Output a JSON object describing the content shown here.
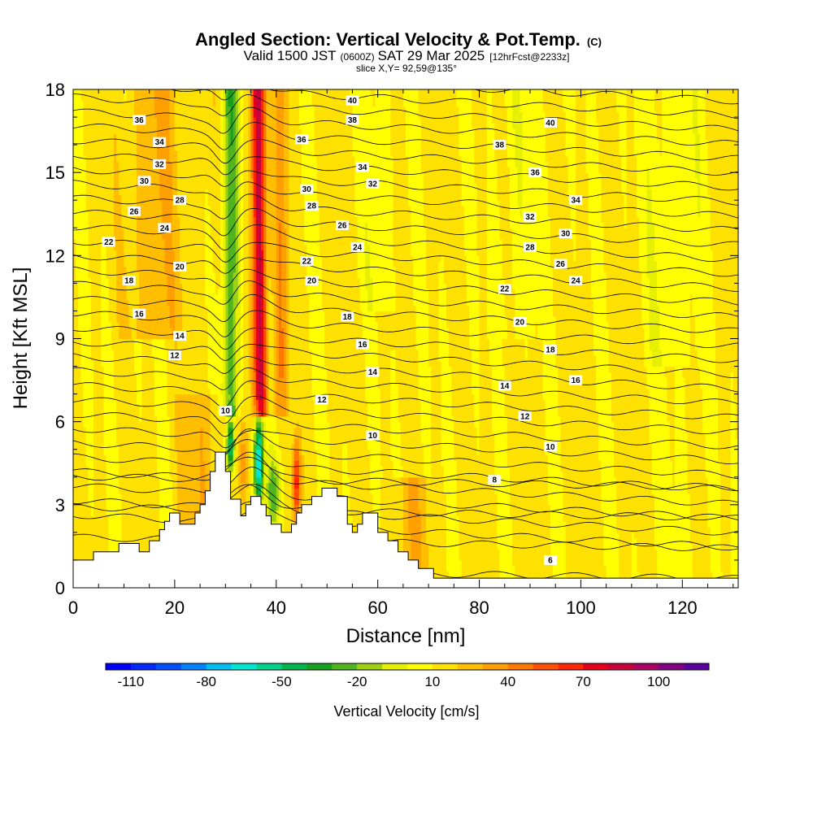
{
  "chart_data": {
    "type": "heatmap",
    "title": "Angled Section: Vertical Velocity & Pot.Temp.",
    "title_mark": "(C)",
    "subtitle_main": "Valid 1500 JST",
    "subtitle_utc": "(0600Z)",
    "subtitle_date": "SAT 29 Mar 2025",
    "subtitle_fcst": "[12hrFcst@2233z]",
    "slice_info": "slice X,Y= 92,59@135°",
    "xlabel": "Distance [nm]",
    "ylabel": "Height [Kft MSL]",
    "xlim": [
      0,
      131
    ],
    "ylim": [
      0,
      18
    ],
    "x_ticks": [
      "0",
      "20",
      "40",
      "60",
      "80",
      "100",
      "120"
    ],
    "y_ticks": [
      "0",
      "3",
      "6",
      "9",
      "12",
      "15",
      "18"
    ],
    "colorbar": {
      "title": "Vertical Velocity [cm/s]",
      "labels": [
        "-110",
        "-80",
        "-50",
        "-20",
        "10",
        "40",
        "70",
        "100"
      ],
      "bins_start": -120,
      "bin_width": 10,
      "colors": [
        "#0000ff",
        "#0028ff",
        "#0050ff",
        "#0082ff",
        "#00bef0",
        "#00e6d2",
        "#00d28c",
        "#00b450",
        "#14a01e",
        "#50b41e",
        "#a0d214",
        "#e6f000",
        "#ffff00",
        "#ffe100",
        "#ffbe00",
        "#ffa000",
        "#ff7800",
        "#ff5000",
        "#ff2800",
        "#e6001e",
        "#c8003c",
        "#aa0064",
        "#820082",
        "#5a00a0"
      ]
    },
    "terrain": [
      [
        0,
        1
      ],
      [
        4,
        1
      ],
      [
        4,
        1.3
      ],
      [
        9,
        1.3
      ],
      [
        9,
        1.6
      ],
      [
        13,
        1.6
      ],
      [
        13,
        1.3
      ],
      [
        15,
        1.3
      ],
      [
        15,
        1.7
      ],
      [
        17,
        1.7
      ],
      [
        17,
        2.1
      ],
      [
        18,
        2.1
      ],
      [
        18,
        2.4
      ],
      [
        19,
        2.4
      ],
      [
        19,
        2.7
      ],
      [
        21,
        2.7
      ],
      [
        21,
        2.3
      ],
      [
        24,
        2.3
      ],
      [
        24,
        2.7
      ],
      [
        25,
        2.7
      ],
      [
        25,
        3.0
      ],
      [
        26,
        3.0
      ],
      [
        26,
        3.5
      ],
      [
        27,
        3.5
      ],
      [
        27,
        4.2
      ],
      [
        28,
        4.2
      ],
      [
        28,
        4.9
      ],
      [
        30,
        4.9
      ],
      [
        30,
        4.2
      ],
      [
        31,
        4.2
      ],
      [
        31,
        3.2
      ],
      [
        33,
        3.2
      ],
      [
        33,
        2.6
      ],
      [
        34,
        2.6
      ],
      [
        34,
        3.0
      ],
      [
        35,
        3.0
      ],
      [
        35,
        3.3
      ],
      [
        37,
        3.3
      ],
      [
        37,
        3.0
      ],
      [
        38,
        3.0
      ],
      [
        38,
        2.6
      ],
      [
        39,
        2.6
      ],
      [
        39,
        2.3
      ],
      [
        41,
        2.3
      ],
      [
        41,
        2.0
      ],
      [
        43,
        2.0
      ],
      [
        43,
        2.3
      ],
      [
        44,
        2.3
      ],
      [
        44,
        2.7
      ],
      [
        45,
        2.7
      ],
      [
        45,
        3.0
      ],
      [
        47,
        3.0
      ],
      [
        47,
        3.3
      ],
      [
        49,
        3.3
      ],
      [
        49,
        3.6
      ],
      [
        52,
        3.6
      ],
      [
        52,
        3.3
      ],
      [
        54,
        3.3
      ],
      [
        54,
        2.3
      ],
      [
        55,
        2.3
      ],
      [
        55,
        2.0
      ],
      [
        56,
        2.0
      ],
      [
        56,
        2.3
      ],
      [
        57,
        2.3
      ],
      [
        57,
        2.7
      ],
      [
        60,
        2.7
      ],
      [
        60,
        2.0
      ],
      [
        62,
        2.0
      ],
      [
        62,
        1.7
      ],
      [
        64,
        1.7
      ],
      [
        64,
        1.3
      ],
      [
        66,
        1.3
      ],
      [
        66,
        1.0
      ],
      [
        68,
        1.0
      ],
      [
        68,
        0.7
      ],
      [
        71,
        0.7
      ],
      [
        71,
        0.35
      ],
      [
        131,
        0.35
      ]
    ],
    "isentropes": {
      "min": 6,
      "max": 41,
      "step": 1,
      "labels": [
        {
          "text": "36",
          "x": 13,
          "y": 16.9
        },
        {
          "text": "34",
          "x": 17,
          "y": 16.1
        },
        {
          "text": "32",
          "x": 17,
          "y": 15.3
        },
        {
          "text": "30",
          "x": 14,
          "y": 14.7
        },
        {
          "text": "28",
          "x": 21,
          "y": 14.0
        },
        {
          "text": "26",
          "x": 12,
          "y": 13.6
        },
        {
          "text": "24",
          "x": 18,
          "y": 13.0
        },
        {
          "text": "22",
          "x": 7,
          "y": 12.5
        },
        {
          "text": "20",
          "x": 21,
          "y": 11.6
        },
        {
          "text": "18",
          "x": 11,
          "y": 11.1
        },
        {
          "text": "16",
          "x": 13,
          "y": 9.9
        },
        {
          "text": "14",
          "x": 21,
          "y": 9.1
        },
        {
          "text": "12",
          "x": 20,
          "y": 8.4
        },
        {
          "text": "10",
          "x": 30,
          "y": 6.4
        },
        {
          "text": "40",
          "x": 55,
          "y": 17.6
        },
        {
          "text": "38",
          "x": 55,
          "y": 16.9
        },
        {
          "text": "36",
          "x": 45,
          "y": 16.2
        },
        {
          "text": "34",
          "x": 57,
          "y": 15.2
        },
        {
          "text": "32",
          "x": 59,
          "y": 14.6
        },
        {
          "text": "30",
          "x": 46,
          "y": 14.4
        },
        {
          "text": "28",
          "x": 47,
          "y": 13.8
        },
        {
          "text": "26",
          "x": 53,
          "y": 13.1
        },
        {
          "text": "24",
          "x": 56,
          "y": 12.3
        },
        {
          "text": "22",
          "x": 46,
          "y": 11.8
        },
        {
          "text": "20",
          "x": 47,
          "y": 11.1
        },
        {
          "text": "18",
          "x": 54,
          "y": 9.8
        },
        {
          "text": "16",
          "x": 57,
          "y": 8.8
        },
        {
          "text": "14",
          "x": 59,
          "y": 7.8
        },
        {
          "text": "12",
          "x": 49,
          "y": 6.8
        },
        {
          "text": "10",
          "x": 59,
          "y": 5.5
        },
        {
          "text": "40",
          "x": 94,
          "y": 16.8
        },
        {
          "text": "38",
          "x": 84,
          "y": 16.0
        },
        {
          "text": "36",
          "x": 91,
          "y": 15.0
        },
        {
          "text": "34",
          "x": 99,
          "y": 14.0
        },
        {
          "text": "32",
          "x": 90,
          "y": 13.4
        },
        {
          "text": "30",
          "x": 97,
          "y": 12.8
        },
        {
          "text": "28",
          "x": 90,
          "y": 12.3
        },
        {
          "text": "26",
          "x": 96,
          "y": 11.7
        },
        {
          "text": "24",
          "x": 99,
          "y": 11.1
        },
        {
          "text": "22",
          "x": 85,
          "y": 10.8
        },
        {
          "text": "20",
          "x": 88,
          "y": 9.6
        },
        {
          "text": "18",
          "x": 94,
          "y": 8.6
        },
        {
          "text": "16",
          "x": 99,
          "y": 7.5
        },
        {
          "text": "14",
          "x": 85,
          "y": 7.3
        },
        {
          "text": "12",
          "x": 89,
          "y": 6.2
        },
        {
          "text": "10",
          "x": 94,
          "y": 5.1
        },
        {
          "text": "8",
          "x": 83,
          "y": 3.9
        },
        {
          "text": "6",
          "x": 94,
          "y": 1.0
        }
      ]
    },
    "notes_series": [
      {
        "feature": "updraft",
        "center_x": 37,
        "height_range": [
          6.5,
          18
        ],
        "peak_value": 80
      },
      {
        "feature": "downdraft",
        "center_x": 31,
        "height_range": [
          6.5,
          18
        ],
        "peak_value": -40
      },
      {
        "feature": "lee_downdraft",
        "center_x": 36.5,
        "height_range": [
          3,
          6.5
        ],
        "peak_value": -90
      },
      {
        "feature": "lee_updraft",
        "center_x": 44,
        "height_range": [
          2,
          5.5
        ],
        "peak_value": 55
      }
    ]
  }
}
